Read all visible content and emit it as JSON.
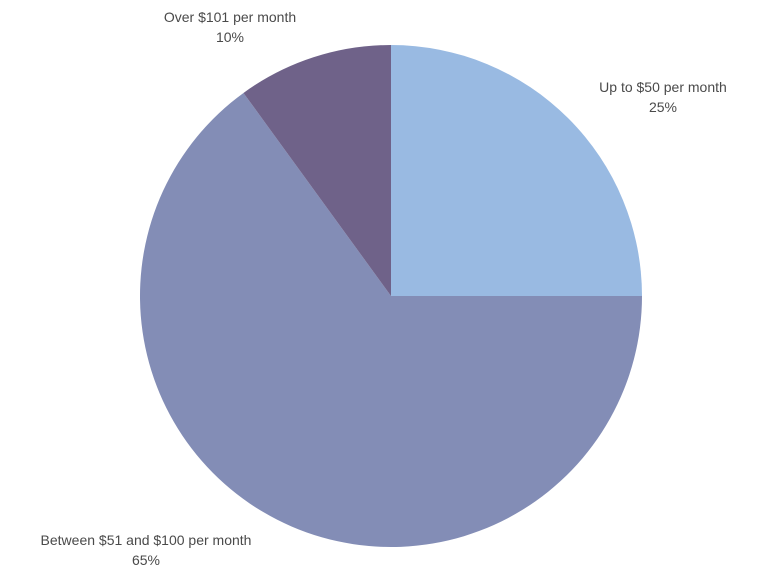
{
  "chart_data": {
    "type": "pie",
    "title": "",
    "slices": [
      {
        "label": "Up to $50 per month",
        "value": 25,
        "value_label": "25%",
        "color": "#99bae2"
      },
      {
        "label": "Between $51 and $100 per month",
        "value": 65,
        "value_label": "65%",
        "color": "#838db6"
      },
      {
        "label": "Over $101 per month",
        "value": 10,
        "value_label": "10%",
        "color": "#6f6289"
      }
    ],
    "start_angle_deg": 0,
    "direction": "clockwise",
    "legend": "none"
  }
}
